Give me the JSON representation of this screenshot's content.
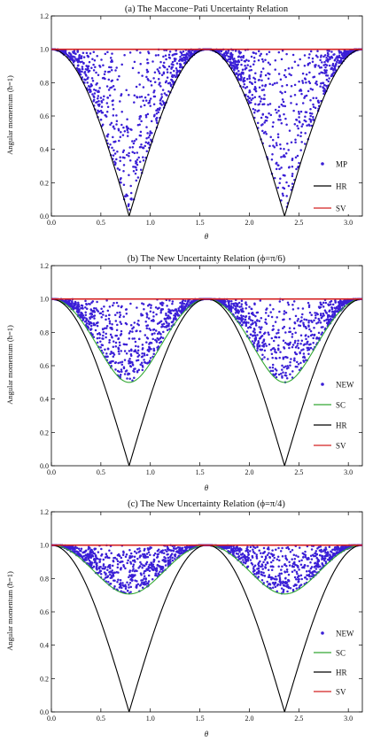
{
  "colors": {
    "scatter": "#3a1fd6",
    "hr": "#000000",
    "sv": "#d42020",
    "sc": "#33a833"
  },
  "chart_data": [
    {
      "type": "scatter",
      "title": "(a) The Maccone−Pati Uncertainty Relation",
      "xlabel": "θ",
      "ylabel": "Angular momentum  (ħ=1)",
      "xlim": [
        0,
        3.1416
      ],
      "ylim": [
        0,
        1.2
      ],
      "xticks": [
        "0.0",
        "0.5",
        "1.0",
        "1.5",
        "2.0",
        "2.5",
        "3.0"
      ],
      "xtick_values": [
        0,
        0.5,
        1.0,
        1.5,
        2.0,
        2.5,
        3.0
      ],
      "yticks": [
        "0.0",
        "0.2",
        "0.4",
        "0.6",
        "0.8",
        "1.0",
        "1.2"
      ],
      "ytick_values": [
        0,
        0.2,
        0.4,
        0.6,
        0.8,
        1.0,
        1.2
      ],
      "legend_position": "right",
      "series": [
        {
          "name": "MP",
          "kind": "points",
          "lower_bound": "abs_cos_2theta",
          "upper": 1.0,
          "point_count": 1500
        },
        {
          "name": "HR",
          "kind": "line",
          "formula": "abs_cos_2theta"
        },
        {
          "name": "SV",
          "kind": "line",
          "formula": "constant_1"
        }
      ]
    },
    {
      "type": "scatter",
      "title": "(b) The New Uncertainty Relation (ϕ=π/6)",
      "xlabel": "θ",
      "ylabel": "Angular momentum  (ħ=1)",
      "xlim": [
        0,
        3.1416
      ],
      "ylim": [
        0,
        1.2
      ],
      "xticks": [
        "0.0",
        "0.5",
        "1.0",
        "1.5",
        "2.0",
        "2.5",
        "3.0"
      ],
      "xtick_values": [
        0,
        0.5,
        1.0,
        1.5,
        2.0,
        2.5,
        3.0
      ],
      "yticks": [
        "0.0",
        "0.2",
        "0.4",
        "0.6",
        "0.8",
        "1.0",
        "1.2"
      ],
      "ytick_values": [
        0,
        0.2,
        0.4,
        0.6,
        0.8,
        1.0,
        1.2
      ],
      "legend_position": "right",
      "phi": 0.5236,
      "series": [
        {
          "name": "NEW",
          "kind": "points",
          "lower_bound": "sc_phi",
          "upper": 1.0,
          "point_count": 1500
        },
        {
          "name": "SC",
          "kind": "line",
          "formula": "sc_phi"
        },
        {
          "name": "HR",
          "kind": "line",
          "formula": "abs_cos_2theta"
        },
        {
          "name": "SV",
          "kind": "line",
          "formula": "constant_1"
        }
      ]
    },
    {
      "type": "scatter",
      "title": "(c) The New Uncertainty Relation (ϕ=π/4)",
      "xlabel": "θ",
      "ylabel": "Angular momentum  (ħ=1)",
      "xlim": [
        0,
        3.1416
      ],
      "ylim": [
        0,
        1.2
      ],
      "xticks": [
        "0.0",
        "0.5",
        "1.0",
        "1.5",
        "2.0",
        "2.5",
        "3.0"
      ],
      "xtick_values": [
        0,
        0.5,
        1.0,
        1.5,
        2.0,
        2.5,
        3.0
      ],
      "yticks": [
        "0.0",
        "0.2",
        "0.4",
        "0.6",
        "0.8",
        "1.0",
        "1.2"
      ],
      "ytick_values": [
        0,
        0.2,
        0.4,
        0.6,
        0.8,
        1.0,
        1.2
      ],
      "legend_position": "right",
      "phi": 0.7854,
      "series": [
        {
          "name": "NEW",
          "kind": "points",
          "lower_bound": "sc_phi",
          "upper": 1.0,
          "point_count": 1500
        },
        {
          "name": "SC",
          "kind": "line",
          "formula": "sc_phi"
        },
        {
          "name": "HR",
          "kind": "line",
          "formula": "abs_cos_2theta"
        },
        {
          "name": "SV",
          "kind": "line",
          "formula": "constant_1"
        }
      ]
    }
  ]
}
